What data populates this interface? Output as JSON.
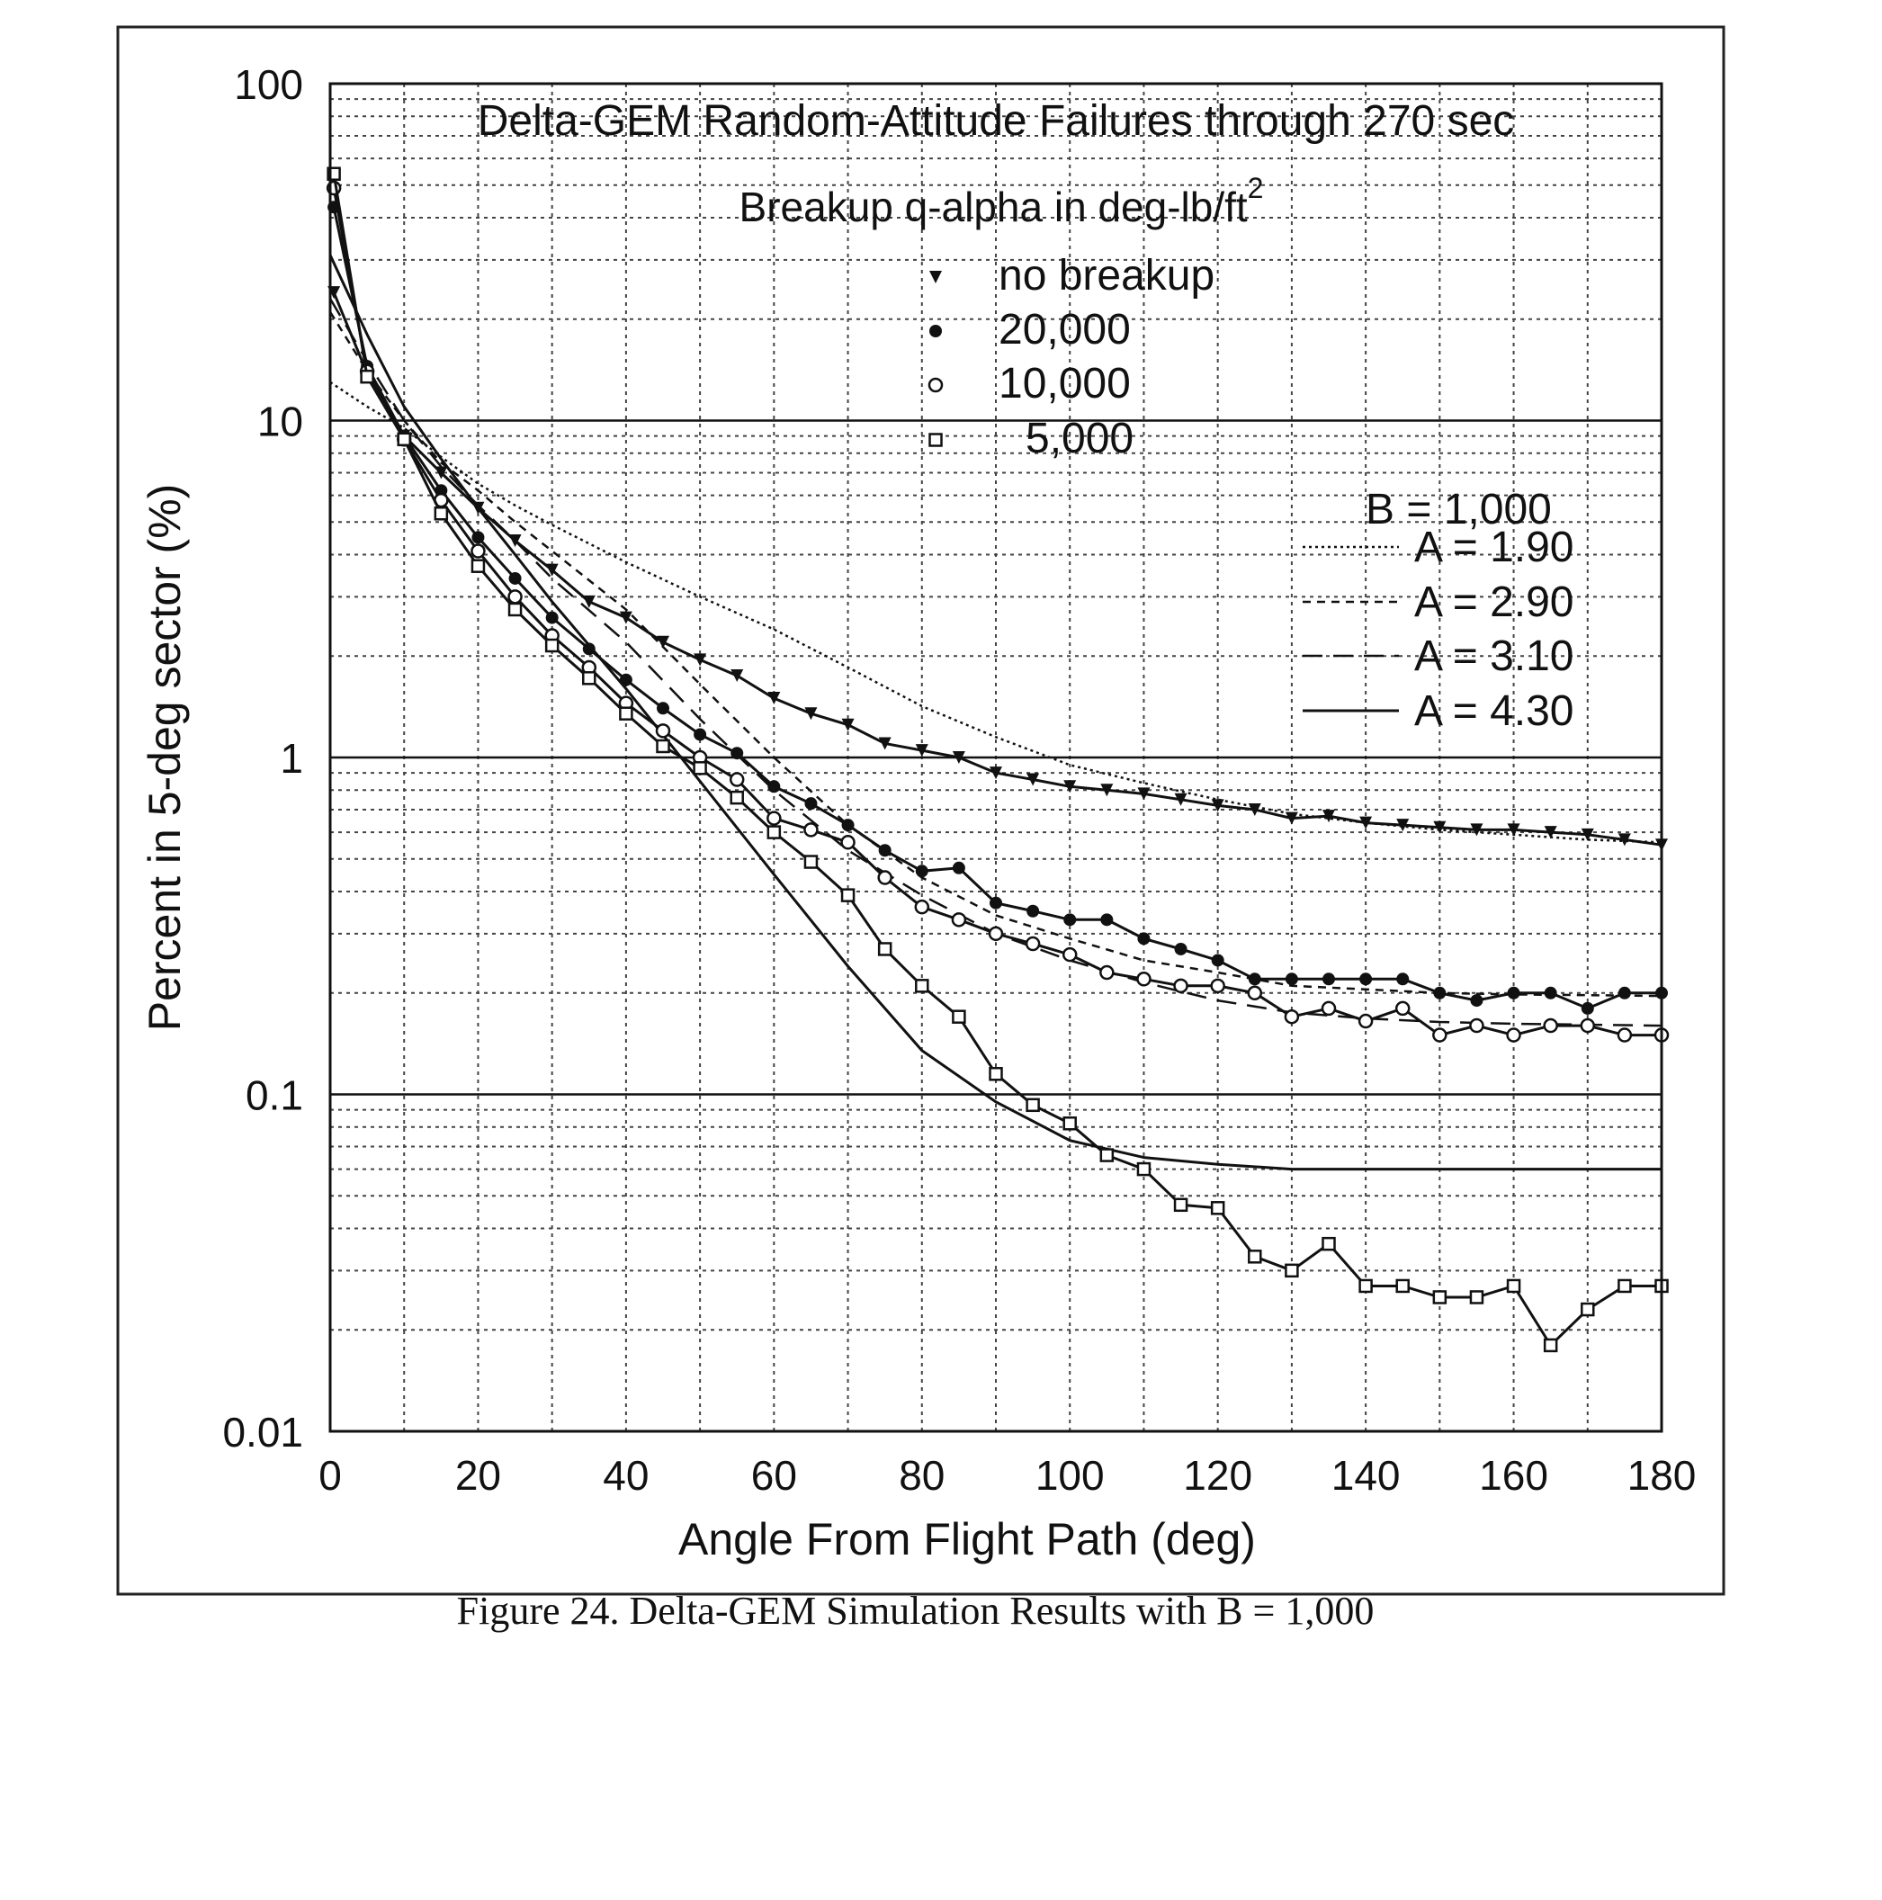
{
  "caption": "Figure 24. Delta-GEM Simulation Results with B = 1,000",
  "chart_data": {
    "type": "line",
    "title": "Delta-GEM Random-Attitude Failures through 270 sec",
    "subtitle": "Breakup q-alpha in deg-lb/ft",
    "subtitle_superscript": "2",
    "xlabel": "Angle From Flight Path (deg)",
    "ylabel": "Percent in 5-deg sector (%)",
    "xlim": [
      0,
      180
    ],
    "ylim": [
      0.01,
      100
    ],
    "yscale": "log",
    "grid": true,
    "x_ticks": [
      "0",
      "20",
      "40",
      "60",
      "80",
      "100",
      "120",
      "140",
      "160",
      "180"
    ],
    "y_ticks": [
      "0.01",
      "0.1",
      "1",
      "10",
      "100"
    ],
    "legend_placement": "top-center",
    "fit_legend_placement": "right",
    "fit_legend_title": "B = 1,000",
    "series": [
      {
        "name": "no breakup",
        "marker": "triangle-down",
        "x": [
          0.5,
          5,
          10,
          15,
          20,
          25,
          30,
          35,
          40,
          45,
          50,
          55,
          60,
          65,
          70,
          75,
          80,
          85,
          90,
          95,
          100,
          105,
          110,
          115,
          120,
          125,
          130,
          135,
          140,
          145,
          150,
          155,
          160,
          165,
          170,
          175,
          180
        ],
        "values": [
          24,
          13.8,
          9,
          7,
          5.5,
          4.4,
          3.6,
          2.9,
          2.6,
          2.2,
          1.95,
          1.75,
          1.5,
          1.35,
          1.25,
          1.1,
          1.05,
          1.0,
          0.9,
          0.86,
          0.82,
          0.8,
          0.78,
          0.75,
          0.72,
          0.7,
          0.66,
          0.67,
          0.64,
          0.63,
          0.62,
          0.61,
          0.61,
          0.6,
          0.59,
          0.57,
          0.55
        ]
      },
      {
        "name": "20,000",
        "marker": "filled-circle",
        "x": [
          0.5,
          5,
          10,
          15,
          20,
          25,
          30,
          35,
          40,
          45,
          50,
          55,
          60,
          65,
          70,
          75,
          80,
          85,
          90,
          95,
          100,
          105,
          110,
          115,
          120,
          125,
          130,
          135,
          140,
          145,
          150,
          155,
          160,
          165,
          170,
          175,
          180
        ],
        "values": [
          43,
          14.5,
          9,
          6.2,
          4.5,
          3.4,
          2.6,
          2.1,
          1.7,
          1.4,
          1.17,
          1.03,
          0.82,
          0.73,
          0.63,
          0.53,
          0.46,
          0.47,
          0.37,
          0.35,
          0.33,
          0.33,
          0.29,
          0.27,
          0.25,
          0.22,
          0.22,
          0.22,
          0.22,
          0.22,
          0.2,
          0.19,
          0.2,
          0.2,
          0.18,
          0.2,
          0.2
        ]
      },
      {
        "name": "10,000",
        "marker": "open-circle",
        "x": [
          0.5,
          5,
          10,
          15,
          20,
          25,
          30,
          35,
          40,
          45,
          50,
          55,
          60,
          65,
          70,
          75,
          80,
          85,
          90,
          95,
          100,
          105,
          110,
          115,
          120,
          125,
          130,
          135,
          140,
          145,
          150,
          155,
          160,
          165,
          170,
          175,
          180
        ],
        "values": [
          49,
          14,
          8.8,
          5.8,
          4.1,
          3.0,
          2.3,
          1.85,
          1.45,
          1.2,
          1.0,
          0.86,
          0.66,
          0.61,
          0.56,
          0.44,
          0.36,
          0.33,
          0.3,
          0.28,
          0.26,
          0.23,
          0.22,
          0.21,
          0.21,
          0.2,
          0.17,
          0.18,
          0.165,
          0.18,
          0.15,
          0.16,
          0.15,
          0.16,
          0.16,
          0.15,
          0.15
        ]
      },
      {
        "name": "5,000",
        "marker": "open-square",
        "x": [
          0.5,
          5,
          10,
          15,
          20,
          25,
          30,
          35,
          40,
          45,
          50,
          55,
          60,
          65,
          70,
          75,
          80,
          85,
          90,
          95,
          100,
          105,
          110,
          115,
          120,
          125,
          130,
          135,
          140,
          145,
          150,
          155,
          160,
          165,
          170,
          175,
          180
        ],
        "values": [
          54,
          13.5,
          8.8,
          5.3,
          3.7,
          2.75,
          2.15,
          1.72,
          1.35,
          1.08,
          0.93,
          0.76,
          0.6,
          0.49,
          0.39,
          0.27,
          0.21,
          0.17,
          0.115,
          0.093,
          0.082,
          0.066,
          0.06,
          0.047,
          0.046,
          0.033,
          0.03,
          0.036,
          0.027,
          0.027,
          0.025,
          0.025,
          0.027,
          0.018,
          0.023,
          0.027,
          0.027
        ]
      }
    ],
    "fits": [
      {
        "name": "A = 1.90",
        "style": "dotted",
        "x": [
          0,
          5,
          10,
          15,
          20,
          25,
          30,
          40,
          50,
          60,
          70,
          80,
          90,
          100,
          110,
          120,
          130,
          140,
          150,
          160,
          170,
          180
        ],
        "values": [
          13,
          11,
          9.5,
          7.8,
          6.5,
          5.6,
          4.9,
          3.8,
          3.0,
          2.4,
          1.85,
          1.42,
          1.15,
          0.95,
          0.84,
          0.75,
          0.68,
          0.64,
          0.61,
          0.59,
          0.57,
          0.56
        ]
      },
      {
        "name": "A = 2.90",
        "style": "short-dash",
        "x": [
          0,
          5,
          10,
          15,
          20,
          25,
          30,
          40,
          50,
          60,
          70,
          80,
          90,
          100,
          110,
          120,
          130,
          140,
          150,
          160,
          170,
          180
        ],
        "values": [
          21,
          14,
          10,
          7.5,
          6.2,
          5.0,
          4.1,
          2.75,
          1.65,
          1.0,
          0.63,
          0.44,
          0.34,
          0.29,
          0.25,
          0.23,
          0.21,
          0.205,
          0.2,
          0.198,
          0.197,
          0.196
        ]
      },
      {
        "name": "A = 3.10",
        "style": "long-dash",
        "x": [
          0,
          5,
          10,
          15,
          20,
          25,
          30,
          40,
          50,
          60,
          70,
          80,
          90,
          100,
          110,
          120,
          130,
          140,
          150,
          160,
          170,
          180
        ],
        "values": [
          23,
          15,
          10,
          7.3,
          5.6,
          4.4,
          3.4,
          2.2,
          1.3,
          0.8,
          0.53,
          0.39,
          0.3,
          0.25,
          0.215,
          0.19,
          0.175,
          0.168,
          0.164,
          0.162,
          0.161,
          0.16
        ]
      },
      {
        "name": "A = 4.30",
        "style": "solid",
        "x": [
          0,
          5,
          10,
          15,
          20,
          25,
          30,
          40,
          50,
          60,
          70,
          80,
          90,
          100,
          110,
          120,
          130,
          140,
          150,
          160,
          170,
          180
        ],
        "values": [
          31,
          18,
          11,
          7.7,
          5.5,
          4.0,
          2.9,
          1.6,
          0.85,
          0.45,
          0.24,
          0.135,
          0.095,
          0.073,
          0.065,
          0.062,
          0.06,
          0.06,
          0.06,
          0.06,
          0.06,
          0.06
        ]
      }
    ]
  }
}
